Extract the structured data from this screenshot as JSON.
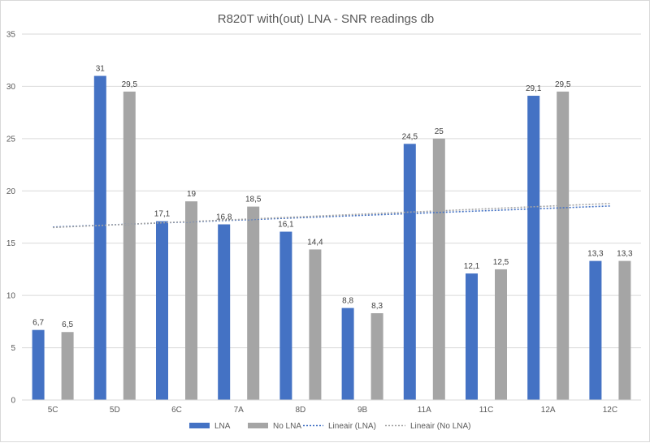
{
  "chart_data": {
    "type": "bar",
    "title": "R820T with(out) LNA - SNR readings db",
    "xlabel": "",
    "ylabel": "",
    "ylim": [
      0,
      35
    ],
    "yticks": [
      0,
      5,
      10,
      15,
      20,
      25,
      30,
      35
    ],
    "grid": true,
    "legend_position": "bottom",
    "categories": [
      "5C",
      "5D",
      "6C",
      "7A",
      "8D",
      "9B",
      "11A",
      "11C",
      "12A",
      "12C"
    ],
    "series": [
      {
        "name": "LNA",
        "color": "#4472c4",
        "values": [
          6.7,
          31,
          17.1,
          16.8,
          16.1,
          8.8,
          24.5,
          12.1,
          29.1,
          13.3
        ],
        "labels": [
          "6,7",
          "31",
          "17,1",
          "16,8",
          "16,1",
          "8,8",
          "24,5",
          "12,1",
          "29,1",
          "13,3"
        ]
      },
      {
        "name": "No LNA",
        "color": "#a5a5a5",
        "values": [
          6.5,
          29.5,
          19,
          18.5,
          14.4,
          8.3,
          25,
          12.5,
          29.5,
          13.3
        ],
        "labels": [
          "6,5",
          "29,5",
          "19",
          "18,5",
          "14,4",
          "8,3",
          "25",
          "12,5",
          "29,5",
          "13,3"
        ]
      }
    ],
    "trendlines": [
      {
        "name": "Lineair (LNA)",
        "series": "LNA",
        "color": "#4472c4",
        "style": "dotted"
      },
      {
        "name": "Lineair (No LNA)",
        "series": "No LNA",
        "color": "#a5a5a5",
        "style": "dotted"
      }
    ]
  }
}
